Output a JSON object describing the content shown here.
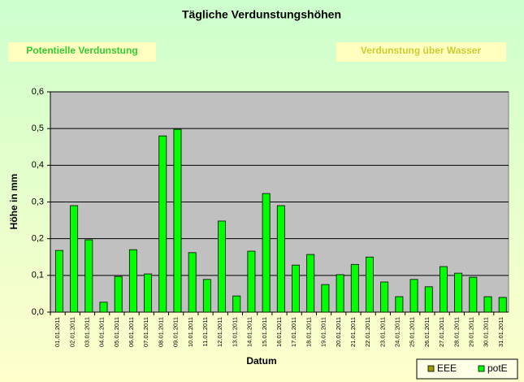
{
  "chart_data": {
    "type": "bar",
    "title": "Tägliche Verdunstungshöhen",
    "annotations": [
      "Potentielle Verdunstung",
      "Verdunstung über Wasser"
    ],
    "x_label": "Datum",
    "y_label": "Höhe in mm",
    "categories": [
      "01.01.2011",
      "02.01.2011",
      "03.01.2011",
      "04.01.2011",
      "05.01.2011",
      "06.01.2011",
      "07.01.2011",
      "08.01.2011",
      "09.01.2011",
      "10.01.2011",
      "11.01.2011",
      "12.01.2011",
      "13.01.2011",
      "14.01.2011",
      "15.01.2011",
      "16.01.2011",
      "17.01.2011",
      "18.01.2011",
      "19.01.2011",
      "20.01.2011",
      "21.01.2011",
      "22.01.2011",
      "23.01.2011",
      "24.01.2011",
      "25.01.2011",
      "26.01.2011",
      "27.01.2011",
      "28.01.2011",
      "29.01.2011",
      "30.01.2011",
      "31.01.2011"
    ],
    "series": [
      {
        "name": "EEE",
        "color": "#999900",
        "values": [
          null,
          null,
          null,
          null,
          null,
          null,
          null,
          null,
          null,
          null,
          null,
          null,
          null,
          null,
          null,
          null,
          null,
          null,
          null,
          null,
          null,
          null,
          null,
          null,
          null,
          null,
          null,
          null,
          null,
          null,
          null
        ]
      },
      {
        "name": "potE",
        "color": "#00ff00",
        "values": [
          0.168,
          0.29,
          0.197,
          0.027,
          0.097,
          0.17,
          0.104,
          0.48,
          0.498,
          0.162,
          0.089,
          0.248,
          0.044,
          0.166,
          0.323,
          0.29,
          0.128,
          0.157,
          0.075,
          0.102,
          0.13,
          0.15,
          0.082,
          0.042,
          0.089,
          0.069,
          0.124,
          0.106,
          0.095,
          0.042,
          0.04
        ]
      }
    ],
    "ylim": [
      0,
      0.6
    ],
    "yticks": [
      {
        "value": 0,
        "label": "0,0"
      },
      {
        "value": 0.1,
        "label": "0,1"
      },
      {
        "value": 0.2,
        "label": "0,2"
      },
      {
        "value": 0.3,
        "label": "0,3"
      },
      {
        "value": 0.4,
        "label": "0,4"
      },
      {
        "value": 0.5,
        "label": "0,5"
      },
      {
        "value": 0.6,
        "label": "0,6"
      }
    ],
    "grid": true,
    "legend": "bottom-right"
  }
}
